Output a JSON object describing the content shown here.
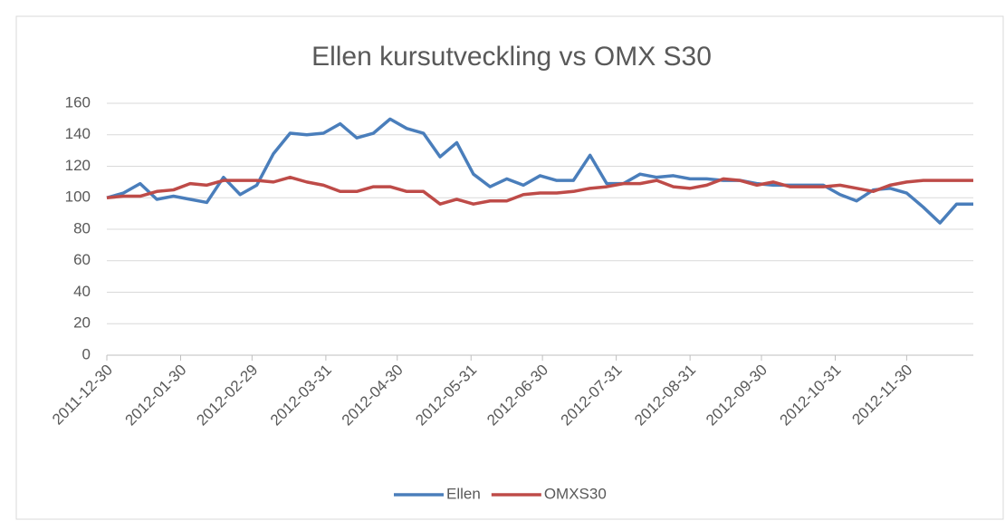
{
  "chart_data": {
    "type": "line",
    "title": "Ellen kursutveckling vs OMX S30",
    "x": [
      "2011-12-30",
      "2012-01-06",
      "2012-01-13",
      "2012-01-20",
      "2012-01-27",
      "2012-02-03",
      "2012-02-10",
      "2012-02-17",
      "2012-02-24",
      "2012-03-02",
      "2012-03-09",
      "2012-03-16",
      "2012-03-23",
      "2012-03-30",
      "2012-04-06",
      "2012-04-13",
      "2012-04-20",
      "2012-04-27",
      "2012-05-04",
      "2012-05-11",
      "2012-05-18",
      "2012-05-25",
      "2012-06-01",
      "2012-06-08",
      "2012-06-15",
      "2012-06-22",
      "2012-06-29",
      "2012-07-06",
      "2012-07-13",
      "2012-07-20",
      "2012-07-27",
      "2012-08-03",
      "2012-08-10",
      "2012-08-17",
      "2012-08-24",
      "2012-08-31",
      "2012-09-07",
      "2012-09-14",
      "2012-09-21",
      "2012-09-28",
      "2012-10-05",
      "2012-10-12",
      "2012-10-19",
      "2012-10-26",
      "2012-11-02",
      "2012-11-09",
      "2012-11-16",
      "2012-11-23",
      "2012-11-30",
      "2012-12-07",
      "2012-12-14",
      "2012-12-21",
      "2012-12-28"
    ],
    "series": [
      {
        "name": "Ellen",
        "color": "#4a7ebb",
        "values": [
          100,
          103,
          109,
          99,
          101,
          99,
          97,
          113,
          102,
          108,
          128,
          141,
          140,
          141,
          147,
          138,
          141,
          150,
          144,
          141,
          126,
          135,
          115,
          107,
          112,
          108,
          114,
          111,
          111,
          127,
          109,
          109,
          115,
          113,
          114,
          112,
          112,
          111,
          111,
          109,
          108,
          108,
          108,
          108,
          102,
          98,
          105,
          106,
          103,
          94,
          84,
          96,
          96
        ]
      },
      {
        "name": "OMXS30",
        "color": "#be4b48",
        "values": [
          100,
          101,
          101,
          104,
          105,
          109,
          108,
          111,
          111,
          111,
          110,
          113,
          110,
          108,
          104,
          104,
          107,
          107,
          104,
          104,
          96,
          99,
          96,
          98,
          98,
          102,
          103,
          103,
          104,
          106,
          107,
          109,
          109,
          111,
          107,
          106,
          108,
          112,
          111,
          108,
          110,
          107,
          107,
          107,
          108,
          106,
          104,
          108,
          110,
          111,
          111,
          111,
          111
        ]
      }
    ],
    "xlim": [
      "2011-12-30",
      "2012-12-28"
    ],
    "xticks": [
      "2011-12-30",
      "2012-01-30",
      "2012-02-29",
      "2012-03-31",
      "2012-04-30",
      "2012-05-31",
      "2012-06-30",
      "2012-07-31",
      "2012-08-31",
      "2012-09-30",
      "2012-10-31",
      "2012-11-30"
    ],
    "ylim": [
      0,
      160
    ],
    "yticks": [
      0,
      20,
      40,
      60,
      80,
      100,
      120,
      140,
      160
    ],
    "grid": true,
    "legend": "bottom"
  }
}
